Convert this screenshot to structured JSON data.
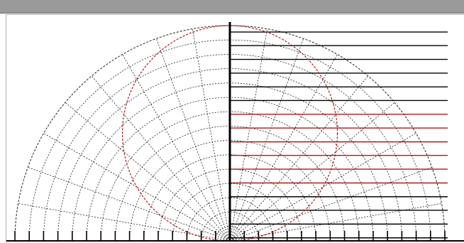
{
  "window": {
    "title": ""
  },
  "chart_data": {
    "type": "polar",
    "title": "",
    "xlabel": "",
    "ylabel": "",
    "grid": true,
    "radial_circles": 15,
    "angle_step_deg": 10,
    "half_plane": "upper",
    "series": [
      {
        "name": "",
        "shape": "circle",
        "color": "#b01818",
        "center_theta_deg": 90,
        "center_r_fraction": 0.5,
        "radius_fraction": 0.5
      }
    ],
    "scale_labels": [
      {
        "text": "",
        "color": "#000000",
        "level": 0.97
      },
      {
        "text": "",
        "color": "#000000",
        "level": 0.907
      },
      {
        "text": "",
        "color": "#000000",
        "level": 0.843
      },
      {
        "text": "",
        "color": "#000000",
        "level": 0.779
      },
      {
        "text": "",
        "color": "#000000",
        "level": 0.715
      },
      {
        "text": "",
        "color": "#000000",
        "level": 0.652
      },
      {
        "text": "",
        "color": "#b01818",
        "level": 0.588
      },
      {
        "text": "",
        "color": "#b01818",
        "level": 0.524
      },
      {
        "text": "",
        "color": "#b01818",
        "level": 0.46
      },
      {
        "text": "",
        "color": "#b01818",
        "level": 0.397
      },
      {
        "text": "",
        "color": "#b01818",
        "level": 0.333
      },
      {
        "text": "",
        "color": "#b01818",
        "level": 0.269
      },
      {
        "text": "",
        "color": "#000000",
        "level": 0.205
      },
      {
        "text": "",
        "color": "#000000",
        "level": 0.142
      },
      {
        "text": "",
        "color": "#000000",
        "level": 0.078
      },
      {
        "text": "",
        "color": "#000000",
        "level": 0.014
      }
    ],
    "axis_labels": {
      "top": "",
      "left": "",
      "bottom": ""
    },
    "colors": {
      "grid": "#222222",
      "axis": "#000000",
      "accent": "#b01818",
      "titlebar": "#9a9a9a"
    }
  }
}
